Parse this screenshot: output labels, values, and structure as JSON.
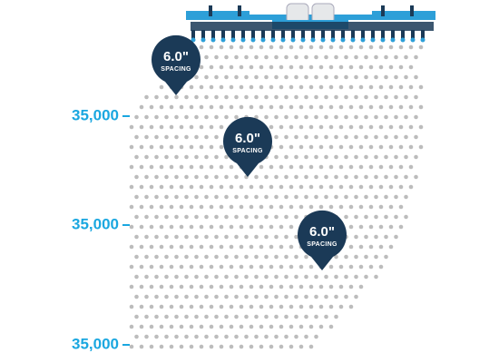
{
  "population_labels": [
    "35,000",
    "35,000",
    "35,000"
  ],
  "pins": [
    {
      "value": "6.0\"",
      "label": "SPACING"
    },
    {
      "value": "6.0\"",
      "label": "SPACING"
    },
    {
      "value": "6.0\"",
      "label": "SPACING"
    }
  ]
}
